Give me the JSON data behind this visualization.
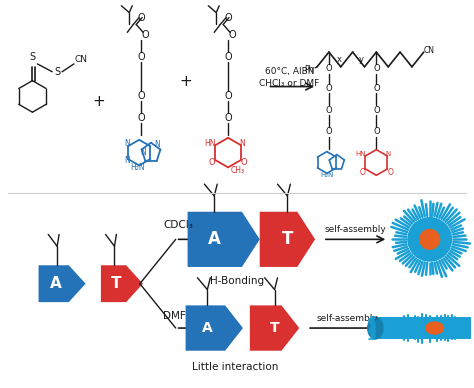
{
  "bg_color": "#ffffff",
  "blue_color": "#2472b8",
  "red_color": "#d93030",
  "black_color": "#1a1a1a",
  "text_cdcl3": "CDCl₃",
  "text_dmf": "DMF",
  "text_hbond": "H-Bonding",
  "text_little": "Little interaction",
  "text_selfassembly": "self-assembly",
  "text_A": "A",
  "text_T": "T",
  "reaction_conditions": "60°C, AIBN",
  "reaction_solvent": "CHCl₃ or DMF",
  "cyan_color": "#1aa0d4",
  "cyan_dark": "#1580b0"
}
